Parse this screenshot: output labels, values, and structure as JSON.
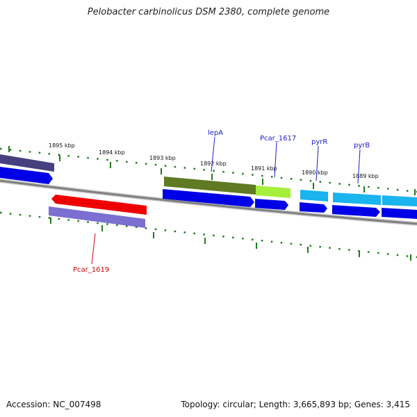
{
  "title": "Pelobacter carbinolicus DSM 2380, complete genome",
  "footer": {
    "accession": "Accession: NC_007498",
    "summary": "Topology: circular; Length: 3,665,893 bp; Genes: 3,415"
  },
  "ticks": [
    "1895 kbp",
    "1894 kbp",
    "1893 kbp",
    "1892 kbp",
    "1891 kbp",
    "1890 kbp",
    "1889 kbp"
  ],
  "genes": [
    {
      "name": "lepA",
      "color": "#1a1ac8"
    },
    {
      "name": "Pcar_1617",
      "color": "#1a1ac8"
    },
    {
      "name": "pyrR",
      "color": "#1a1ac8"
    },
    {
      "name": "pyrB",
      "color": "#1a1ac8"
    },
    {
      "name": "Pcar_1619",
      "color": "#d40000"
    }
  ],
  "colors": {
    "backbone": "#808080",
    "tick": "#1c7a1c",
    "cds": "#0000e6",
    "gene_olive": "#5f7a22",
    "gene_lime": "#a6ee3c",
    "gene_cyan": "#1ab4ee",
    "gene_red": "#ee0000",
    "gene_purple": "#7b6fd0",
    "gene_navy": "#46407e"
  }
}
